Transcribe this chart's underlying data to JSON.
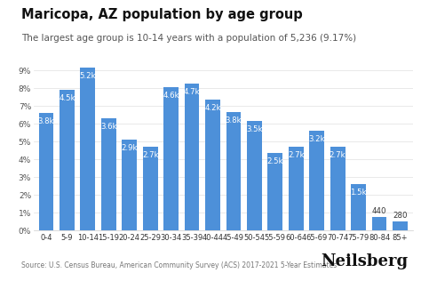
{
  "title": "Maricopa, AZ population by age group",
  "subtitle": "The largest age group is 10-14 years with a population of 5,236 (9.17%)",
  "source": "Source: U.S. Census Bureau, American Community Survey (ACS) 2017-2021 5-Year Estimates",
  "categories": [
    "0-4",
    "5-9",
    "10-14",
    "15-19",
    "20-24",
    "25-29",
    "30-34",
    "35-39",
    "40-44",
    "45-49",
    "50-54",
    "55-59",
    "60-64",
    "65-69",
    "70-74",
    "75-79",
    "80-84",
    "85+"
  ],
  "values_pct": [
    6.6,
    7.9,
    9.17,
    6.3,
    5.1,
    4.7,
    8.07,
    8.25,
    7.36,
    6.67,
    6.14,
    4.38,
    4.73,
    5.61,
    4.73,
    2.63,
    0.77,
    0.49
  ],
  "labels": [
    "3.8k",
    "4.5k",
    "5.2k",
    "3.6k",
    "2.9k",
    "2.7k",
    "4.6k",
    "4.7k",
    "4.2k",
    "3.8k",
    "3.5k",
    "2.5k",
    "2.7k",
    "3.2k",
    "2.7k",
    "1.5k",
    "440",
    "280"
  ],
  "bar_color": "#4d90d9",
  "bg_color": "#ffffff",
  "ylim": [
    0,
    9.8
  ],
  "yticks": [
    0,
    1,
    2,
    3,
    4,
    5,
    6,
    7,
    8,
    9
  ],
  "title_fontsize": 10.5,
  "subtitle_fontsize": 7.5,
  "label_fontsize": 6.2,
  "source_fontsize": 5.5,
  "brand": "Neilsberg",
  "brand_fontsize": 13,
  "inside_label_threshold": 1.5
}
